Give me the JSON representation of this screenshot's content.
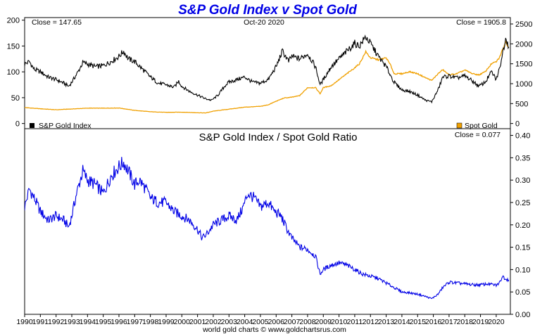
{
  "chart_data": [
    {
      "type": "line",
      "title": "S&P Gold Index v Spot Gold",
      "date_label": "Oct-20  2020",
      "left_close": "Close = 147.65",
      "right_close": "Close = 1905.8",
      "x_range": [
        1990,
        2020.9
      ],
      "left_axis": {
        "ylim": [
          -10,
          205
        ],
        "ticks": [
          0,
          50,
          100,
          150,
          200
        ]
      },
      "right_axis": {
        "ylim": [
          -130,
          2660
        ],
        "ticks": [
          0,
          500,
          1000,
          1500,
          2000,
          2500
        ]
      },
      "grid": false,
      "series": [
        {
          "name": "S&P Gold Index",
          "axis": "left",
          "color": "#000000",
          "x": [
            1990.0,
            1990.3,
            1990.6,
            1991.0,
            1991.5,
            1992.0,
            1992.5,
            1992.8,
            1993.0,
            1993.4,
            1993.7,
            1994.0,
            1994.5,
            1995.0,
            1995.5,
            1996.0,
            1996.3,
            1996.6,
            1997.0,
            1997.5,
            1998.0,
            1998.5,
            1999.0,
            1999.5,
            1999.8,
            2000.0,
            2000.5,
            2001.0,
            2001.5,
            2001.9,
            2002.3,
            2002.8,
            2003.0,
            2003.5,
            2004.0,
            2004.5,
            2005.0,
            2005.5,
            2006.0,
            2006.4,
            2006.8,
            2007.0,
            2007.5,
            2008.0,
            2008.5,
            2008.8,
            2009.0,
            2009.5,
            2010.0,
            2010.5,
            2011.0,
            2011.3,
            2011.7,
            2012.0,
            2012.5,
            2013.0,
            2013.5,
            2014.0,
            2014.5,
            2015.0,
            2015.5,
            2015.9,
            2016.3,
            2016.6,
            2017.0,
            2017.5,
            2018.0,
            2018.5,
            2018.9,
            2019.3,
            2019.7,
            2020.0,
            2020.2,
            2020.5,
            2020.6,
            2020.8
          ],
          "values": [
            115,
            120,
            105,
            100,
            90,
            85,
            78,
            72,
            80,
            100,
            118,
            115,
            110,
            112,
            120,
            130,
            140,
            125,
            120,
            105,
            90,
            78,
            75,
            70,
            82,
            72,
            62,
            55,
            48,
            45,
            55,
            75,
            80,
            85,
            90,
            80,
            78,
            85,
            110,
            140,
            120,
            130,
            125,
            135,
            110,
            75,
            85,
            110,
            125,
            140,
            155,
            150,
            168,
            155,
            130,
            110,
            80,
            65,
            62,
            55,
            45,
            42,
            65,
            90,
            92,
            88,
            92,
            82,
            72,
            80,
            100,
            85,
            105,
            150,
            168,
            148
          ]
        },
        {
          "name": "Spot Gold",
          "axis": "right",
          "color": "#f0a000",
          "x": [
            1990.0,
            1991.0,
            1992.0,
            1993.0,
            1994.0,
            1995.0,
            1996.0,
            1997.0,
            1998.0,
            1999.0,
            2000.0,
            2001.0,
            2001.5,
            2002.0,
            2003.0,
            2004.0,
            2005.0,
            2005.5,
            2006.0,
            2006.5,
            2007.0,
            2007.5,
            2008.0,
            2008.5,
            2008.8,
            2009.0,
            2009.5,
            2010.0,
            2010.5,
            2011.0,
            2011.3,
            2011.7,
            2012.0,
            2012.5,
            2013.0,
            2013.3,
            2013.5,
            2014.0,
            2014.5,
            2015.0,
            2015.5,
            2015.9,
            2016.3,
            2016.6,
            2017.0,
            2017.5,
            2018.0,
            2018.5,
            2018.9,
            2019.3,
            2019.7,
            2020.0,
            2020.2,
            2020.6,
            2020.8
          ],
          "values": [
            400,
            370,
            345,
            365,
            385,
            385,
            390,
            330,
            295,
            280,
            285,
            270,
            265,
            310,
            360,
            410,
            430,
            470,
            560,
            640,
            660,
            700,
            900,
            900,
            750,
            900,
            950,
            1100,
            1250,
            1400,
            1500,
            1800,
            1650,
            1600,
            1650,
            1450,
            1250,
            1250,
            1300,
            1250,
            1150,
            1080,
            1250,
            1350,
            1220,
            1250,
            1340,
            1250,
            1220,
            1300,
            1500,
            1550,
            1650,
            2050,
            1905
          ]
        }
      ],
      "legend": [
        {
          "label": "S&P Gold Index",
          "placement": "bottom-left",
          "color": "#000000"
        },
        {
          "label": "Spot Gold",
          "placement": "bottom-right",
          "color": "#f0a000"
        }
      ]
    },
    {
      "type": "line",
      "title": "S&P Gold Index  /  Spot Gold Ratio",
      "close_label": "Close = 0.077",
      "x_range": [
        1990,
        2020.9
      ],
      "ylim": [
        0,
        0.415
      ],
      "yticks": [
        0.0,
        0.05,
        0.1,
        0.15,
        0.2,
        0.25,
        0.3,
        0.35,
        0.4
      ],
      "ytick_labels": [
        "0.00",
        "0.05",
        "0.10",
        "0.15",
        "0.20",
        "0.25",
        "0.30",
        "0.35",
        "0.40"
      ],
      "grid": false,
      "series": [
        {
          "name": "",
          "color": "#0000e6",
          "x": [
            1990.0,
            1990.3,
            1990.6,
            1991.0,
            1991.5,
            1992.0,
            1992.5,
            1992.8,
            1993.0,
            1993.3,
            1993.7,
            1994.0,
            1994.5,
            1995.0,
            1995.5,
            1996.0,
            1996.3,
            1996.6,
            1997.0,
            1997.3,
            1997.7,
            1998.0,
            1998.5,
            1999.0,
            1999.5,
            2000.0,
            2000.5,
            2001.0,
            2001.3,
            2001.6,
            2002.0,
            2002.5,
            2003.0,
            2003.5,
            2003.9,
            2004.2,
            2004.6,
            2005.0,
            2005.5,
            2005.9,
            2006.3,
            2006.7,
            2007.0,
            2007.5,
            2008.0,
            2008.5,
            2008.8,
            2009.0,
            2009.5,
            2010.0,
            2010.5,
            2011.0,
            2011.5,
            2012.0,
            2012.5,
            2013.0,
            2013.5,
            2014.0,
            2014.5,
            2015.0,
            2015.5,
            2015.9,
            2016.3,
            2016.6,
            2017.0,
            2017.5,
            2018.0,
            2018.5,
            2019.0,
            2019.5,
            2020.0,
            2020.2,
            2020.4,
            2020.6,
            2020.8
          ],
          "values": [
            0.24,
            0.28,
            0.26,
            0.23,
            0.21,
            0.22,
            0.21,
            0.195,
            0.22,
            0.27,
            0.32,
            0.3,
            0.29,
            0.27,
            0.31,
            0.33,
            0.34,
            0.32,
            0.29,
            0.3,
            0.28,
            0.26,
            0.25,
            0.25,
            0.23,
            0.22,
            0.21,
            0.19,
            0.17,
            0.18,
            0.2,
            0.21,
            0.22,
            0.21,
            0.24,
            0.27,
            0.26,
            0.24,
            0.25,
            0.23,
            0.22,
            0.19,
            0.17,
            0.15,
            0.145,
            0.13,
            0.09,
            0.1,
            0.11,
            0.115,
            0.11,
            0.1,
            0.09,
            0.085,
            0.08,
            0.07,
            0.06,
            0.05,
            0.048,
            0.045,
            0.04,
            0.035,
            0.045,
            0.06,
            0.072,
            0.07,
            0.068,
            0.066,
            0.066,
            0.068,
            0.065,
            0.07,
            0.085,
            0.08,
            0.077
          ]
        }
      ]
    }
  ],
  "x_axis": {
    "tick_labels": [
      "1990",
      "1991",
      "1992",
      "1993",
      "1994",
      "1995",
      "1996",
      "1997",
      "1998",
      "1999",
      "2000",
      "2001",
      "2002",
      "2003",
      "2004",
      "2005",
      "2006",
      "2007",
      "2008",
      "2009",
      "2010",
      "2011",
      "2012",
      "2013",
      "2014",
      "2015",
      "2016",
      "2017",
      "2018",
      "2019",
      "2020"
    ]
  },
  "credit": "world gold charts © www.goldchartsrus.com"
}
